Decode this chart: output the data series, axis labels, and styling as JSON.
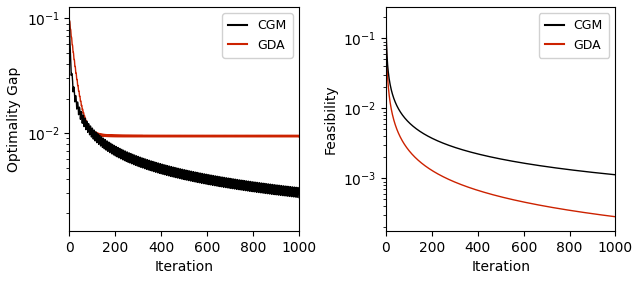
{
  "n_iter": 1001,
  "cgm_color": "#000000",
  "gda_color": "#cc2200",
  "linewidth": 1.0,
  "left_ylabel": "Optimality Gap",
  "right_ylabel": "Feasibility",
  "xlabel": "Iteration",
  "legend_labels": [
    "CGM",
    "GDA"
  ],
  "figsize": [
    6.4,
    2.81
  ],
  "dpi": 100
}
